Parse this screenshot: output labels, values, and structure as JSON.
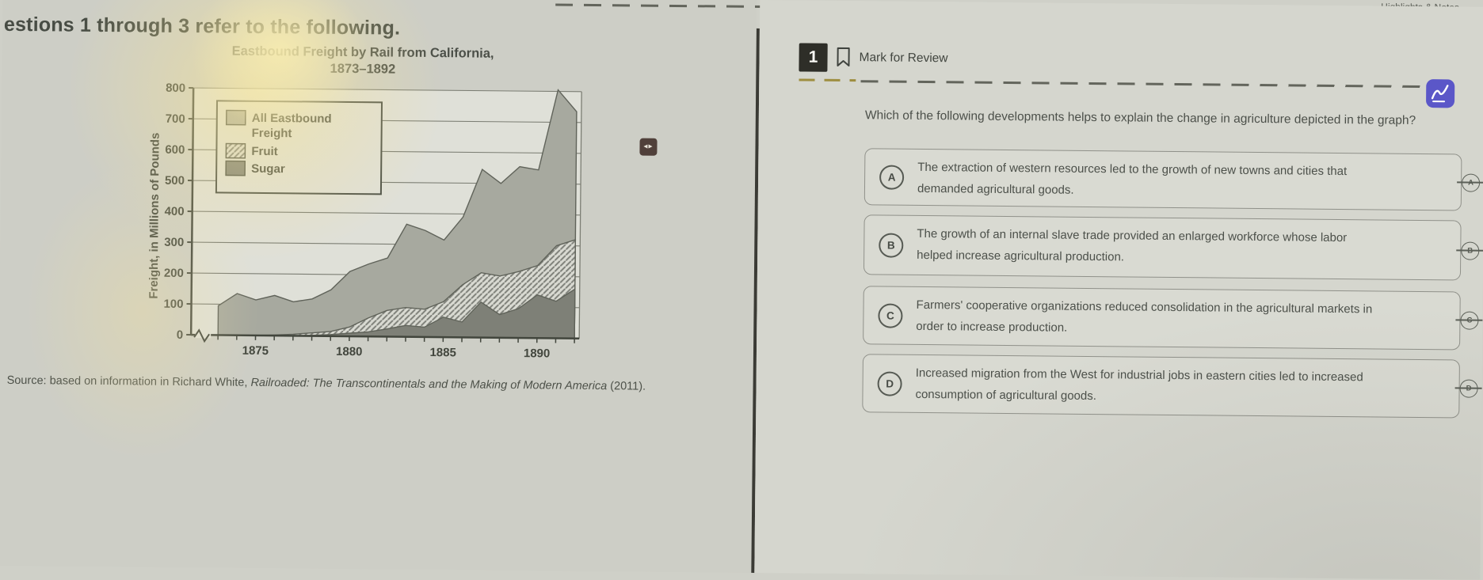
{
  "header": {
    "highlights_notes_label": "Highlights & Notes"
  },
  "stimulus": {
    "heading": "estions 1 through 3 refer to the following.",
    "source_prefix": "Source: based on information in Richard White, ",
    "source_title": "Railroaded: The Transcontinentals and the Making of Modern America",
    "source_suffix": " (2011)."
  },
  "chart_data": {
    "type": "area",
    "title": "Eastbound Freight by Rail from California, 1873–1892",
    "title_line1": "Eastbound Freight by Rail from California,",
    "title_line2": "1873–1892",
    "ylabel": "Freight, in Millions of Pounds",
    "xlabel": "",
    "ylim": [
      0,
      800
    ],
    "yticks": [
      0,
      100,
      200,
      300,
      400,
      500,
      600,
      700,
      800
    ],
    "x": [
      1873,
      1874,
      1875,
      1876,
      1877,
      1878,
      1879,
      1880,
      1881,
      1882,
      1883,
      1884,
      1885,
      1886,
      1887,
      1888,
      1889,
      1890,
      1891,
      1892
    ],
    "xtick_labels": [
      "1875",
      "1880",
      "1885",
      "1890"
    ],
    "grid": "horizontal",
    "legend_position": "upper-left",
    "x_axis_break": true,
    "series": [
      {
        "name": "All Eastbound Freight",
        "pattern": "solid-gray",
        "values": [
          95,
          135,
          115,
          130,
          110,
          120,
          150,
          210,
          235,
          255,
          365,
          345,
          315,
          390,
          545,
          500,
          555,
          545,
          805,
          735
        ]
      },
      {
        "name": "Fruit",
        "pattern": "diagonal-hatch",
        "values": [
          0,
          0,
          0,
          2,
          5,
          10,
          15,
          30,
          60,
          85,
          95,
          90,
          115,
          170,
          210,
          200,
          215,
          235,
          300,
          320
        ]
      },
      {
        "name": "Sugar",
        "pattern": "solid-dark-gray",
        "values": [
          0,
          0,
          0,
          0,
          0,
          2,
          5,
          10,
          15,
          25,
          37,
          32,
          65,
          50,
          115,
          75,
          95,
          140,
          120,
          160
        ]
      }
    ]
  },
  "question": {
    "number": "1",
    "mark_for_review_label": "Mark for Review",
    "prompt": "Which of the following developments helps to explain the change in agriculture depicted in the graph?",
    "options": [
      {
        "letter": "A",
        "text": "The extraction of western resources led to the growth of new towns and cities that demanded agricultural goods."
      },
      {
        "letter": "B",
        "text": "The growth of an internal slave trade provided an enlarged workforce whose labor helped increase agricultural production."
      },
      {
        "letter": "C",
        "text": "Farmers' cooperative organizations reduced consolidation in the agricultural markets in order to increase production."
      },
      {
        "letter": "D",
        "text": "Increased migration from the West for industrial jobs in eastern cities led to increased consumption of agricultural goods."
      }
    ]
  },
  "colors": {
    "accent_purple": "#5b57c8",
    "question_badge_dark": "#2e2e28",
    "khaki_dash": "#9e8e40",
    "chart_area_gray": "#a7a99f",
    "chart_area_dark": "#7e8077"
  }
}
